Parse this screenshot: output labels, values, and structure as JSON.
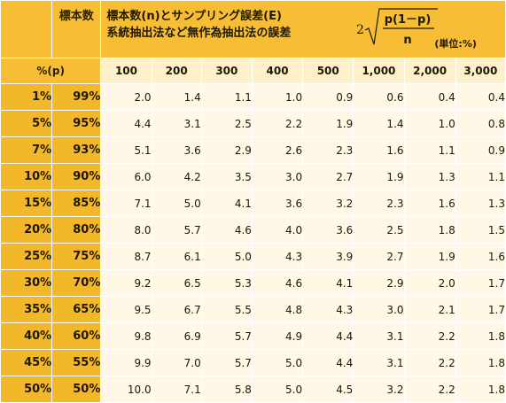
{
  "header": {
    "sample_label": "標本数",
    "title_line1": "標本数(n)とサンプリング誤差(E)",
    "title_line2": "系統抽出法など無作為抽出法の誤差",
    "formula_coef": "2",
    "formula_numerator": "p(1－p)",
    "formula_denominator": "n",
    "unit": "(単位:%)",
    "p_label": "%(p)"
  },
  "columns": [
    "100",
    "200",
    "300",
    "400",
    "500",
    "1,000",
    "2,000",
    "3,000"
  ],
  "rows": [
    {
      "p": "1%",
      "q": "99%",
      "values": [
        "2.0",
        "1.4",
        "1.1",
        "1.0",
        "0.9",
        "0.6",
        "0.4",
        "0.4"
      ]
    },
    {
      "p": "5%",
      "q": "95%",
      "values": [
        "4.4",
        "3.1",
        "2.5",
        "2.2",
        "1.9",
        "1.4",
        "1.0",
        "0.8"
      ]
    },
    {
      "p": "7%",
      "q": "93%",
      "values": [
        "5.1",
        "3.6",
        "2.9",
        "2.6",
        "2.3",
        "1.6",
        "1.1",
        "0.9"
      ]
    },
    {
      "p": "10%",
      "q": "90%",
      "values": [
        "6.0",
        "4.2",
        "3.5",
        "3.0",
        "2.7",
        "1.9",
        "1.3",
        "1.1"
      ]
    },
    {
      "p": "15%",
      "q": "85%",
      "values": [
        "7.1",
        "5.0",
        "4.1",
        "3.6",
        "3.2",
        "2.3",
        "1.6",
        "1.3"
      ]
    },
    {
      "p": "20%",
      "q": "80%",
      "values": [
        "8.0",
        "5.7",
        "4.6",
        "4.0",
        "3.6",
        "2.5",
        "1.8",
        "1.5"
      ]
    },
    {
      "p": "25%",
      "q": "75%",
      "values": [
        "8.7",
        "6.1",
        "5.0",
        "4.3",
        "3.9",
        "2.7",
        "1.9",
        "1.6"
      ]
    },
    {
      "p": "30%",
      "q": "70%",
      "values": [
        "9.2",
        "6.5",
        "5.3",
        "4.6",
        "4.1",
        "2.9",
        "2.0",
        "1.7"
      ]
    },
    {
      "p": "35%",
      "q": "65%",
      "values": [
        "9.5",
        "6.7",
        "5.5",
        "4.8",
        "4.3",
        "3.0",
        "2.1",
        "1.7"
      ]
    },
    {
      "p": "40%",
      "q": "60%",
      "values": [
        "9.8",
        "6.9",
        "5.7",
        "4.9",
        "4.4",
        "3.1",
        "2.2",
        "1.8"
      ]
    },
    {
      "p": "45%",
      "q": "55%",
      "values": [
        "9.9",
        "7.0",
        "5.7",
        "5.0",
        "4.4",
        "3.1",
        "2.2",
        "1.8"
      ]
    },
    {
      "p": "50%",
      "q": "50%",
      "values": [
        "10.0",
        "7.1",
        "5.8",
        "5.0",
        "4.5",
        "3.2",
        "2.2",
        "1.8"
      ]
    }
  ],
  "colors": {
    "header_bg": "#f6bd35",
    "n_row_bg": "#fdf0cb",
    "value_bg": "#fff8e6"
  }
}
